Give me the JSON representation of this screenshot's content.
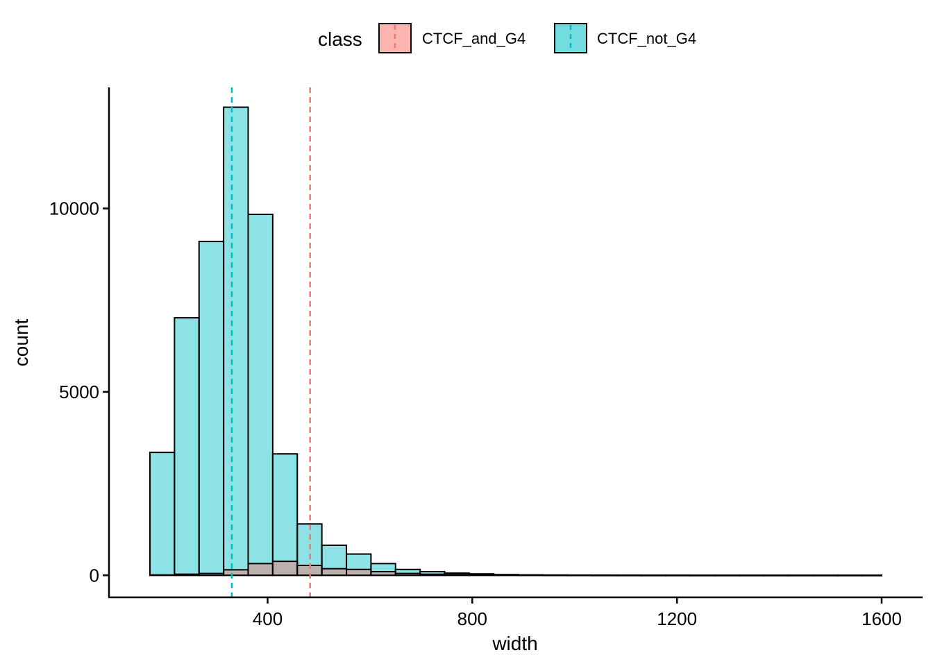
{
  "chart_data": {
    "type": "histogram",
    "title": "",
    "xlabel": "width",
    "ylabel": "count",
    "xlim": [
      90,
      1680
    ],
    "ylim": [
      -600,
      13300
    ],
    "x_ticks": [
      400,
      800,
      1200,
      1600
    ],
    "x_tick_labels": [
      "400",
      "800",
      "1200",
      "1600"
    ],
    "y_ticks": [
      0,
      5000,
      10000
    ],
    "y_tick_labels": [
      "0",
      "5000",
      "10000"
    ],
    "grid": false,
    "legend": {
      "title": "class",
      "position": "top",
      "entries": [
        "CTCF_and_G4",
        "CTCF_not_G4"
      ]
    },
    "bin_edges": [
      170,
      218,
      266,
      314,
      362,
      410,
      458,
      506,
      554,
      602,
      650,
      698,
      746,
      794,
      842,
      890,
      938,
      986,
      1034,
      1082,
      1130,
      1178,
      1226,
      1274,
      1322,
      1370,
      1418,
      1466,
      1514,
      1562,
      1600
    ],
    "series": [
      {
        "name": "CTCF_not_G4",
        "color": "#00BFC4",
        "mean": 330,
        "counts": [
          3350,
          7020,
          9100,
          12760,
          9840,
          3310,
          1400,
          820,
          580,
          320,
          160,
          100,
          60,
          40,
          20,
          12,
          8,
          5,
          4,
          3,
          2,
          2,
          1,
          1,
          1,
          1,
          1,
          1,
          1,
          1
        ]
      },
      {
        "name": "CTCF_and_G4",
        "color": "#F8766D",
        "mean": 483,
        "counts": [
          10,
          30,
          50,
          150,
          320,
          380,
          270,
          180,
          160,
          100,
          50,
          30,
          20,
          12,
          8,
          5,
          4,
          3,
          2,
          2,
          1,
          1,
          1,
          1,
          1,
          1,
          1,
          1,
          1,
          1
        ]
      }
    ]
  }
}
